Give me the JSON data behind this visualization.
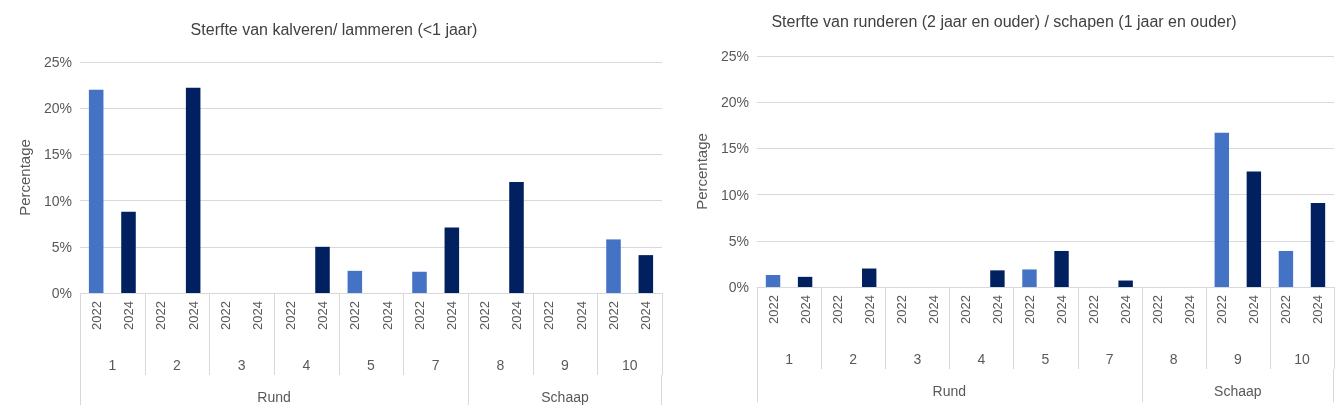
{
  "chart_data": [
    {
      "type": "bar",
      "title": "Sterfte van kalveren/ lammeren (<1 jaar)",
      "ylabel": "Percentage",
      "categories": [
        "2022",
        "2024",
        "2022",
        "2024",
        "2022",
        "2024",
        "2022",
        "2024",
        "2022",
        "2024",
        "2022",
        "2024",
        "2022",
        "2024",
        "2022",
        "2024",
        "2022",
        "2024"
      ],
      "values": [
        22.0,
        8.8,
        0,
        22.2,
        0,
        0,
        0,
        5.0,
        2.4,
        0,
        2.3,
        7.1,
        0,
        12.0,
        0,
        0,
        5.8,
        4.1
      ],
      "colors": [
        "#4472c4",
        "#002060",
        "#4472c4",
        "#002060",
        "#4472c4",
        "#002060",
        "#4472c4",
        "#002060",
        "#4472c4",
        "#002060",
        "#4472c4",
        "#002060",
        "#4472c4",
        "#002060",
        "#4472c4",
        "#002060",
        "#4472c4",
        "#002060"
      ],
      "ylim": [
        0,
        25
      ],
      "yticks": [
        {
          "value": 0,
          "label": "0%"
        },
        {
          "value": 5,
          "label": "5%"
        },
        {
          "value": 10,
          "label": "10%"
        },
        {
          "value": 15,
          "label": "15%"
        },
        {
          "value": 20,
          "label": "20%"
        },
        {
          "value": 25,
          "label": "25%"
        }
      ],
      "grid": "y",
      "annotations": [
        "1",
        "2",
        "3",
        "4",
        "5",
        "7",
        "8",
        "9",
        "10",
        "Rund",
        "Schaap"
      ]
    },
    {
      "type": "bar",
      "title": "Sterfte van runderen (2 jaar en ouder) / schapen (1 jaar en ouder)",
      "ylabel": "Percentage",
      "categories": [
        "2022",
        "2024",
        "2022",
        "2024",
        "2022",
        "2024",
        "2022",
        "2024",
        "2022",
        "2024",
        "2022",
        "2024",
        "2022",
        "2024",
        "2022",
        "2024",
        "2022",
        "2024"
      ],
      "values": [
        1.3,
        1.1,
        0,
        2.0,
        0,
        0,
        0,
        1.8,
        1.9,
        3.9,
        0,
        0.7,
        0,
        0,
        16.7,
        12.5,
        3.9,
        9.1
      ],
      "colors": [
        "#4472c4",
        "#002060",
        "#4472c4",
        "#002060",
        "#4472c4",
        "#002060",
        "#4472c4",
        "#002060",
        "#4472c4",
        "#002060",
        "#4472c4",
        "#002060",
        "#4472c4",
        "#002060",
        "#4472c4",
        "#002060",
        "#4472c4",
        "#002060"
      ],
      "ylim": [
        0,
        25
      ],
      "yticks": [
        {
          "value": 0,
          "label": "0%"
        },
        {
          "value": 5,
          "label": "5%"
        },
        {
          "value": 10,
          "label": "10%"
        },
        {
          "value": 15,
          "label": "15%"
        },
        {
          "value": 20,
          "label": "20%"
        },
        {
          "value": 25,
          "label": "25%"
        }
      ],
      "grid": "y",
      "annotations": [
        "1",
        "2",
        "3",
        "4",
        "5",
        "7",
        "8",
        "9",
        "10",
        "Rund",
        "Schaap"
      ]
    }
  ]
}
